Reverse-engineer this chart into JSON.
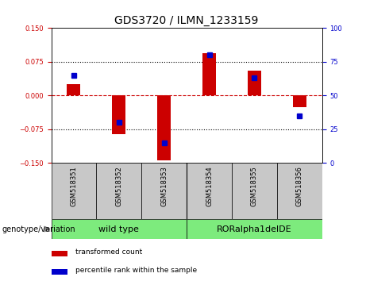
{
  "title": "GDS3720 / ILMN_1233159",
  "samples": [
    "GSM518351",
    "GSM518352",
    "GSM518353",
    "GSM518354",
    "GSM518355",
    "GSM518356"
  ],
  "red_bars": [
    0.025,
    -0.085,
    -0.145,
    0.095,
    0.055,
    -0.025
  ],
  "blue_dot_right": [
    65,
    30,
    15,
    80,
    63,
    35
  ],
  "ylim_left": [
    -0.15,
    0.15
  ],
  "ylim_right": [
    0,
    100
  ],
  "yticks_left": [
    -0.15,
    -0.075,
    0,
    0.075,
    0.15
  ],
  "yticks_right": [
    0,
    25,
    50,
    75,
    100
  ],
  "group1_label": "wild type",
  "group2_label": "RORalpha1delDE",
  "genotype_label": "genotype/variation",
  "legend": [
    "transformed count",
    "percentile rank within the sample"
  ],
  "red_color": "#cc0000",
  "blue_color": "#0000cc",
  "tick_bg": "#c8c8c8",
  "group_bg": "#7deb7d",
  "bar_width": 0.3,
  "title_fontsize": 10,
  "tick_fontsize": 6,
  "label_fontsize": 7,
  "legend_fontsize": 6.5,
  "group_fontsize": 8
}
